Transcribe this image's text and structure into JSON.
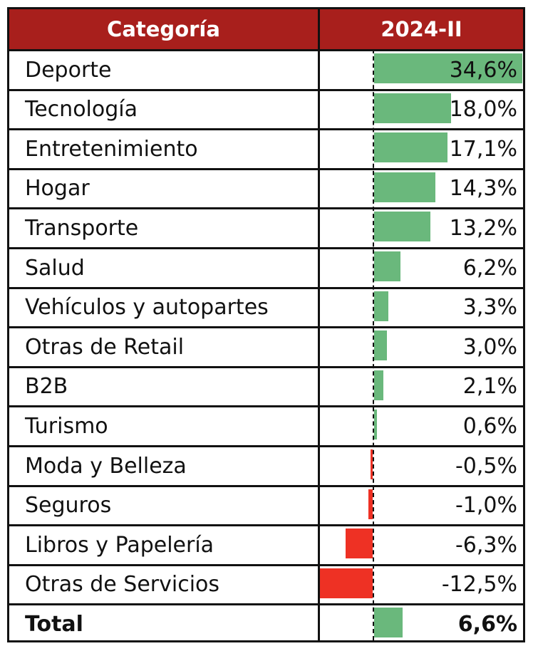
{
  "header": {
    "category_label": "Categoría",
    "period_label": "2024-II"
  },
  "colors": {
    "header_bg": "#a81f1c",
    "positive_bar": "#6ab87c",
    "negative_bar": "#ee3124"
  },
  "chart_data": {
    "type": "bar",
    "title": "",
    "xlabel": "",
    "ylabel": "",
    "orientation": "horizontal",
    "xlim": [
      -12.5,
      34.6
    ],
    "series": [
      {
        "name": "2024-II",
        "values": [
          34.6,
          18.0,
          17.1,
          14.3,
          13.2,
          6.2,
          3.3,
          3.0,
          2.1,
          0.6,
          -0.5,
          -1.0,
          -6.3,
          -12.5,
          6.6
        ]
      }
    ],
    "categories": [
      "Deporte",
      "Tecnología",
      "Entretenimiento",
      "Hogar",
      "Transporte",
      "Salud",
      "Vehículos y autopartes",
      "Otras de Retail",
      "B2B",
      "Turismo",
      "Moda y Belleza",
      "Seguros",
      "Libros y Papelería",
      "Otras de Servicios",
      "Total"
    ],
    "rows": [
      {
        "category": "Deporte",
        "label": "34,6%",
        "value": 34.6
      },
      {
        "category": "Tecnología",
        "label": "18,0%",
        "value": 18.0
      },
      {
        "category": "Entretenimiento",
        "label": "17,1%",
        "value": 17.1
      },
      {
        "category": "Hogar",
        "label": "14,3%",
        "value": 14.3
      },
      {
        "category": "Transporte",
        "label": "13,2%",
        "value": 13.2
      },
      {
        "category": "Salud",
        "label": "6,2%",
        "value": 6.2
      },
      {
        "category": "Vehículos y autopartes",
        "label": "3,3%",
        "value": 3.3
      },
      {
        "category": "Otras de Retail",
        "label": "3,0%",
        "value": 3.0
      },
      {
        "category": "B2B",
        "label": "2,1%",
        "value": 2.1
      },
      {
        "category": "Turismo",
        "label": "0,6%",
        "value": 0.6
      },
      {
        "category": "Moda y Belleza",
        "label": "-0,5%",
        "value": -0.5
      },
      {
        "category": "Seguros",
        "label": "-1,0%",
        "value": -1.0
      },
      {
        "category": "Libros y Papelería",
        "label": "-6,3%",
        "value": -6.3
      },
      {
        "category": "Otras de Servicios",
        "label": "-12,5%",
        "value": -12.5
      },
      {
        "category": "Total",
        "label": "6,6%",
        "value": 6.6,
        "bold": true
      }
    ]
  }
}
